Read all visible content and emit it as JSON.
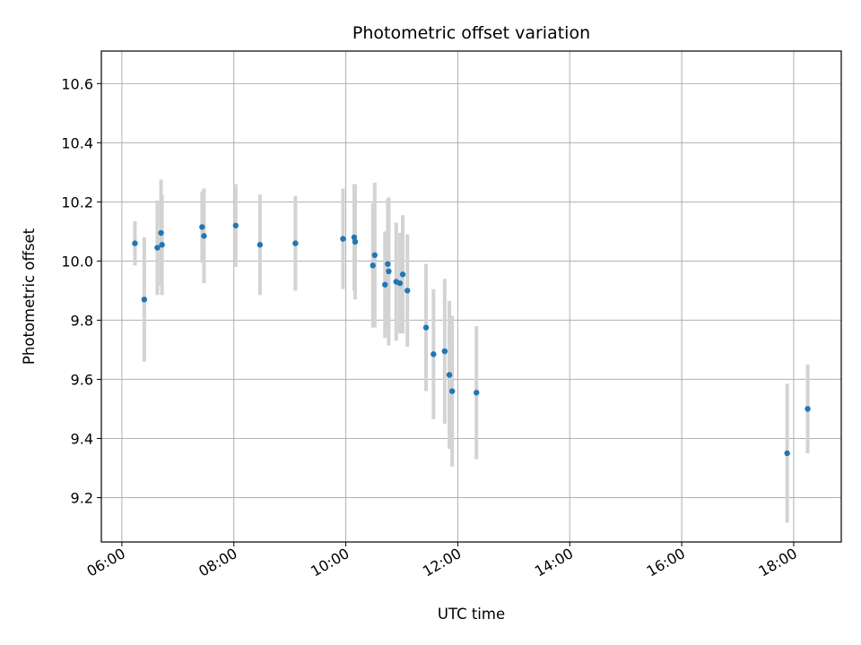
{
  "chart_data": {
    "type": "scatter",
    "title": "Photometric offset variation",
    "xlabel": "UTC time",
    "ylabel": "Photometric offset",
    "x_is_time": true,
    "xlim": [
      "05:38",
      "18:51"
    ],
    "ylim": [
      9.05,
      10.71
    ],
    "xticks": [
      "06:00",
      "08:00",
      "10:00",
      "12:00",
      "14:00",
      "16:00",
      "18:00"
    ],
    "yticks": [
      9.2,
      9.4,
      9.6,
      9.8,
      10.0,
      10.2,
      10.4,
      10.6
    ],
    "ytick_labels": [
      "9.2",
      "9.4",
      "9.6",
      "9.8",
      "10.0",
      "10.2",
      "10.4",
      "10.6"
    ],
    "grid": true,
    "colors": {
      "point": "#1f77b4",
      "errorbar": "#d3d3d3",
      "grid": "#b0b0b0",
      "axes": "#000000"
    },
    "series": [
      {
        "points": [
          {
            "x": "06:14",
            "y": 10.06,
            "err": 0.075
          },
          {
            "x": "06:24",
            "y": 9.87,
            "err": 0.21
          },
          {
            "x": "06:38",
            "y": 10.045,
            "err": 0.16
          },
          {
            "x": "06:42",
            "y": 10.095,
            "err": 0.18
          },
          {
            "x": "06:43",
            "y": 10.055,
            "err": 0.17
          },
          {
            "x": "07:26",
            "y": 10.115,
            "err": 0.12
          },
          {
            "x": "07:28",
            "y": 10.085,
            "err": 0.16
          },
          {
            "x": "08:02",
            "y": 10.12,
            "err": 0.14
          },
          {
            "x": "08:28",
            "y": 10.055,
            "err": 0.17
          },
          {
            "x": "09:06",
            "y": 10.06,
            "err": 0.16
          },
          {
            "x": "09:57",
            "y": 10.075,
            "err": 0.17
          },
          {
            "x": "10:09",
            "y": 10.08,
            "err": 0.18
          },
          {
            "x": "10:10",
            "y": 10.065,
            "err": 0.195
          },
          {
            "x": "10:29",
            "y": 9.985,
            "err": 0.21
          },
          {
            "x": "10:31",
            "y": 10.02,
            "err": 0.245
          },
          {
            "x": "10:42",
            "y": 9.92,
            "err": 0.18
          },
          {
            "x": "10:45",
            "y": 9.99,
            "err": 0.22
          },
          {
            "x": "10:46",
            "y": 9.965,
            "err": 0.25
          },
          {
            "x": "10:54",
            "y": 9.93,
            "err": 0.2
          },
          {
            "x": "10:58",
            "y": 9.925,
            "err": 0.17
          },
          {
            "x": "11:01",
            "y": 9.955,
            "err": 0.2
          },
          {
            "x": "11:06",
            "y": 9.9,
            "err": 0.19
          },
          {
            "x": "11:26",
            "y": 9.775,
            "err": 0.215
          },
          {
            "x": "11:34",
            "y": 9.685,
            "err": 0.22
          },
          {
            "x": "11:46",
            "y": 9.695,
            "err": 0.245
          },
          {
            "x": "11:51",
            "y": 9.615,
            "err": 0.25
          },
          {
            "x": "11:54",
            "y": 9.56,
            "err": 0.255
          },
          {
            "x": "12:20",
            "y": 9.555,
            "err": 0.225
          },
          {
            "x": "17:53",
            "y": 9.35,
            "err": 0.235
          },
          {
            "x": "18:15",
            "y": 9.5,
            "err": 0.15
          }
        ]
      }
    ]
  }
}
